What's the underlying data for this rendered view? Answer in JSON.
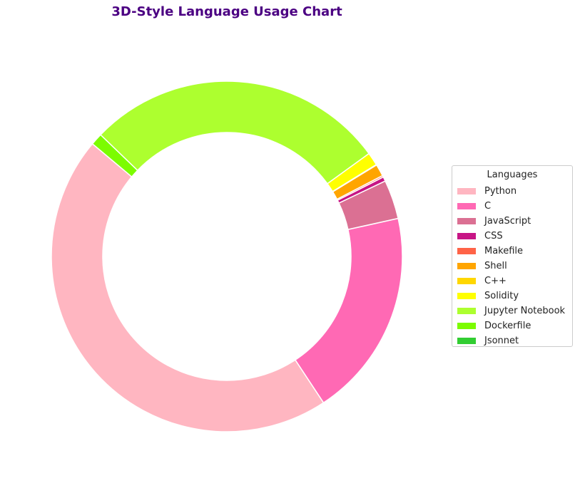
{
  "chart_data": {
    "type": "pie",
    "title": "3D-Style Language Usage Chart",
    "legend_title": "Languages",
    "legend_position": "center-right",
    "donut": true,
    "categories": [
      "Python",
      "C",
      "JavaScript",
      "CSS",
      "Makefile",
      "Shell",
      "C++",
      "Solidity",
      "Jupyter Notebook",
      "Dockerfile",
      "Jsonnet"
    ],
    "values": [
      45.4,
      19.2,
      3.6,
      0.4,
      0.15,
      1.1,
      0.05,
      1.2,
      27.8,
      1.1,
      0.0
    ],
    "colors": [
      "#FFB6C1",
      "#FF69B4",
      "#DB7093",
      "#C71585",
      "#FF6347",
      "#FFA500",
      "#FFD700",
      "#FFFF00",
      "#ADFF2F",
      "#7CFC00",
      "#32CD32"
    ]
  }
}
